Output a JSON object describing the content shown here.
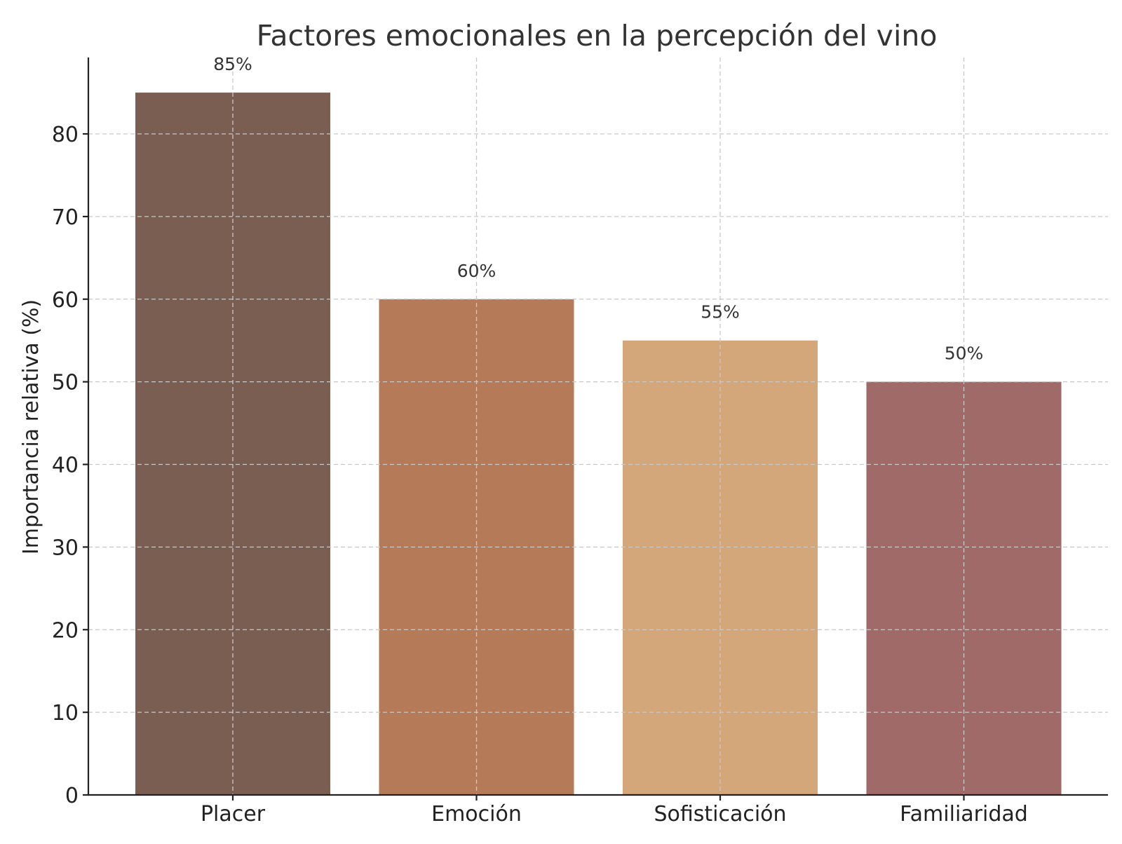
{
  "chart_data": {
    "type": "bar",
    "title": "Factores emocionales en la percepción del vino",
    "xlabel": "",
    "ylabel": "Importancia relativa (%)",
    "categories": [
      "Placer",
      "Emoción",
      "Sofisticación",
      "Familiaridad"
    ],
    "values": [
      85,
      60,
      55,
      50
    ],
    "value_labels": [
      "85%",
      "60%",
      "55%",
      "50%"
    ],
    "colors": [
      "#7b5e52",
      "#b57b59",
      "#d4a77b",
      "#a06a69"
    ],
    "yticks": [
      0,
      10,
      20,
      30,
      40,
      50,
      60,
      70,
      80
    ],
    "ylim": [
      0,
      89.25
    ],
    "grid": true,
    "legend": false
  }
}
